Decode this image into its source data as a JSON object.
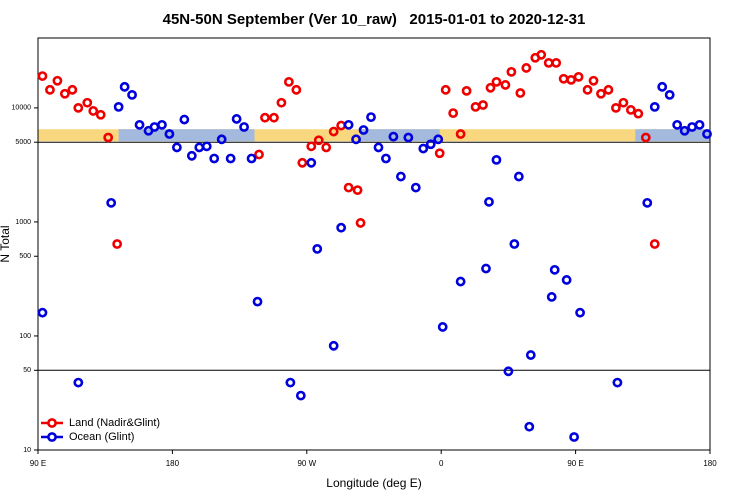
{
  "chart_data": {
    "type": "scatter",
    "title": "45N-50N September (Ver 10_raw)   2015-01-01 to 2020-12-31",
    "xlabel": "Longitude (deg E)",
    "ylabel": "N Total",
    "log_y": true,
    "legend": "lower left",
    "xlim": [
      90,
      540
    ],
    "xticks": [
      {
        "value": 90,
        "label": "90 E"
      },
      180,
      {
        "value": 270,
        "label": "90 W"
      },
      {
        "value": 360,
        "label": "0"
      },
      {
        "value": 450,
        "label": "90 E"
      },
      {
        "value": 540,
        "label": "180"
      }
    ],
    "ylim": [
      10,
      41000
    ],
    "yticks": [
      10,
      50,
      100,
      500,
      1000,
      5000,
      10000
    ],
    "hlines": [
      50,
      5000
    ],
    "bands": [
      {
        "color": "#f9d77e",
        "x": [
          90,
          540
        ],
        "y": [
          5100,
          6500
        ]
      },
      {
        "color": "#a3b9de",
        "x": [
          144,
          235
        ],
        "y": [
          5100,
          6500
        ]
      },
      {
        "color": "#a3b9de",
        "x": [
          306,
          359
        ],
        "y": [
          5100,
          6500
        ]
      },
      {
        "color": "#a3b9de",
        "x": [
          490,
          540
        ],
        "y": [
          5100,
          6500
        ]
      }
    ],
    "series": [
      {
        "name": "Land (Nadir&Glint)",
        "color": "#ee0000",
        "x": [
          93,
          98,
          103,
          108,
          113,
          117,
          123,
          127,
          132,
          137,
          143,
          238,
          242,
          248,
          253,
          258,
          263,
          267,
          273,
          278,
          283,
          288,
          293,
          298,
          304,
          306,
          359,
          363,
          368,
          373,
          377,
          383,
          388,
          393,
          397,
          403,
          407,
          413,
          417,
          423,
          427,
          432,
          437,
          442,
          447,
          452,
          458,
          462,
          467,
          472,
          477,
          482,
          487,
          492,
          497,
          503
        ],
        "values": [
          19000,
          14400,
          17300,
          13300,
          14400,
          10000,
          11100,
          9400,
          8700,
          5500,
          640,
          3900,
          8200,
          8200,
          11100,
          16900,
          14400,
          3300,
          4600,
          5200,
          4500,
          6200,
          7000,
          2000,
          1900,
          980,
          4000,
          14400,
          9000,
          5900,
          14100,
          10200,
          10600,
          15000,
          16900,
          15900,
          20700,
          13500,
          22400,
          27500,
          29200,
          24800,
          24800,
          18000,
          17600,
          18700,
          14400,
          17300,
          13300,
          14400,
          10000,
          11100,
          9600,
          8900,
          5500,
          640
        ]
      },
      {
        "name": "Ocean (Glint)",
        "color": "#0000dd",
        "x": [
          93,
          117,
          139,
          144,
          148,
          153,
          158,
          164,
          168,
          173,
          178,
          183,
          188,
          193,
          198,
          203,
          208,
          213,
          219,
          223,
          228,
          233,
          237,
          259,
          266,
          273,
          277,
          288,
          293,
          298,
          303,
          308,
          313,
          318,
          323,
          328,
          333,
          338,
          343,
          348,
          353,
          358,
          361,
          373,
          390,
          392,
          397,
          405,
          409,
          412,
          419,
          420,
          434,
          436,
          444,
          449,
          453,
          478,
          498,
          503,
          508,
          513,
          518,
          523,
          528,
          533,
          538
        ],
        "values": [
          160,
          39,
          1470,
          10200,
          15300,
          13000,
          7100,
          6300,
          6800,
          7100,
          5900,
          4500,
          7900,
          3800,
          4500,
          4600,
          3600,
          5300,
          3600,
          8000,
          6800,
          3600,
          200,
          39,
          30,
          3300,
          580,
          82,
          890,
          7100,
          5300,
          6400,
          8300,
          4500,
          3600,
          5600,
          2500,
          5500,
          2000,
          4400,
          4800,
          5300,
          120,
          300,
          390,
          1500,
          3500,
          49,
          640,
          2500,
          16,
          68,
          220,
          380,
          310,
          13,
          160,
          39,
          1470,
          10200,
          15300,
          13000,
          7100,
          6300,
          6800,
          7100,
          5900
        ]
      }
    ]
  }
}
